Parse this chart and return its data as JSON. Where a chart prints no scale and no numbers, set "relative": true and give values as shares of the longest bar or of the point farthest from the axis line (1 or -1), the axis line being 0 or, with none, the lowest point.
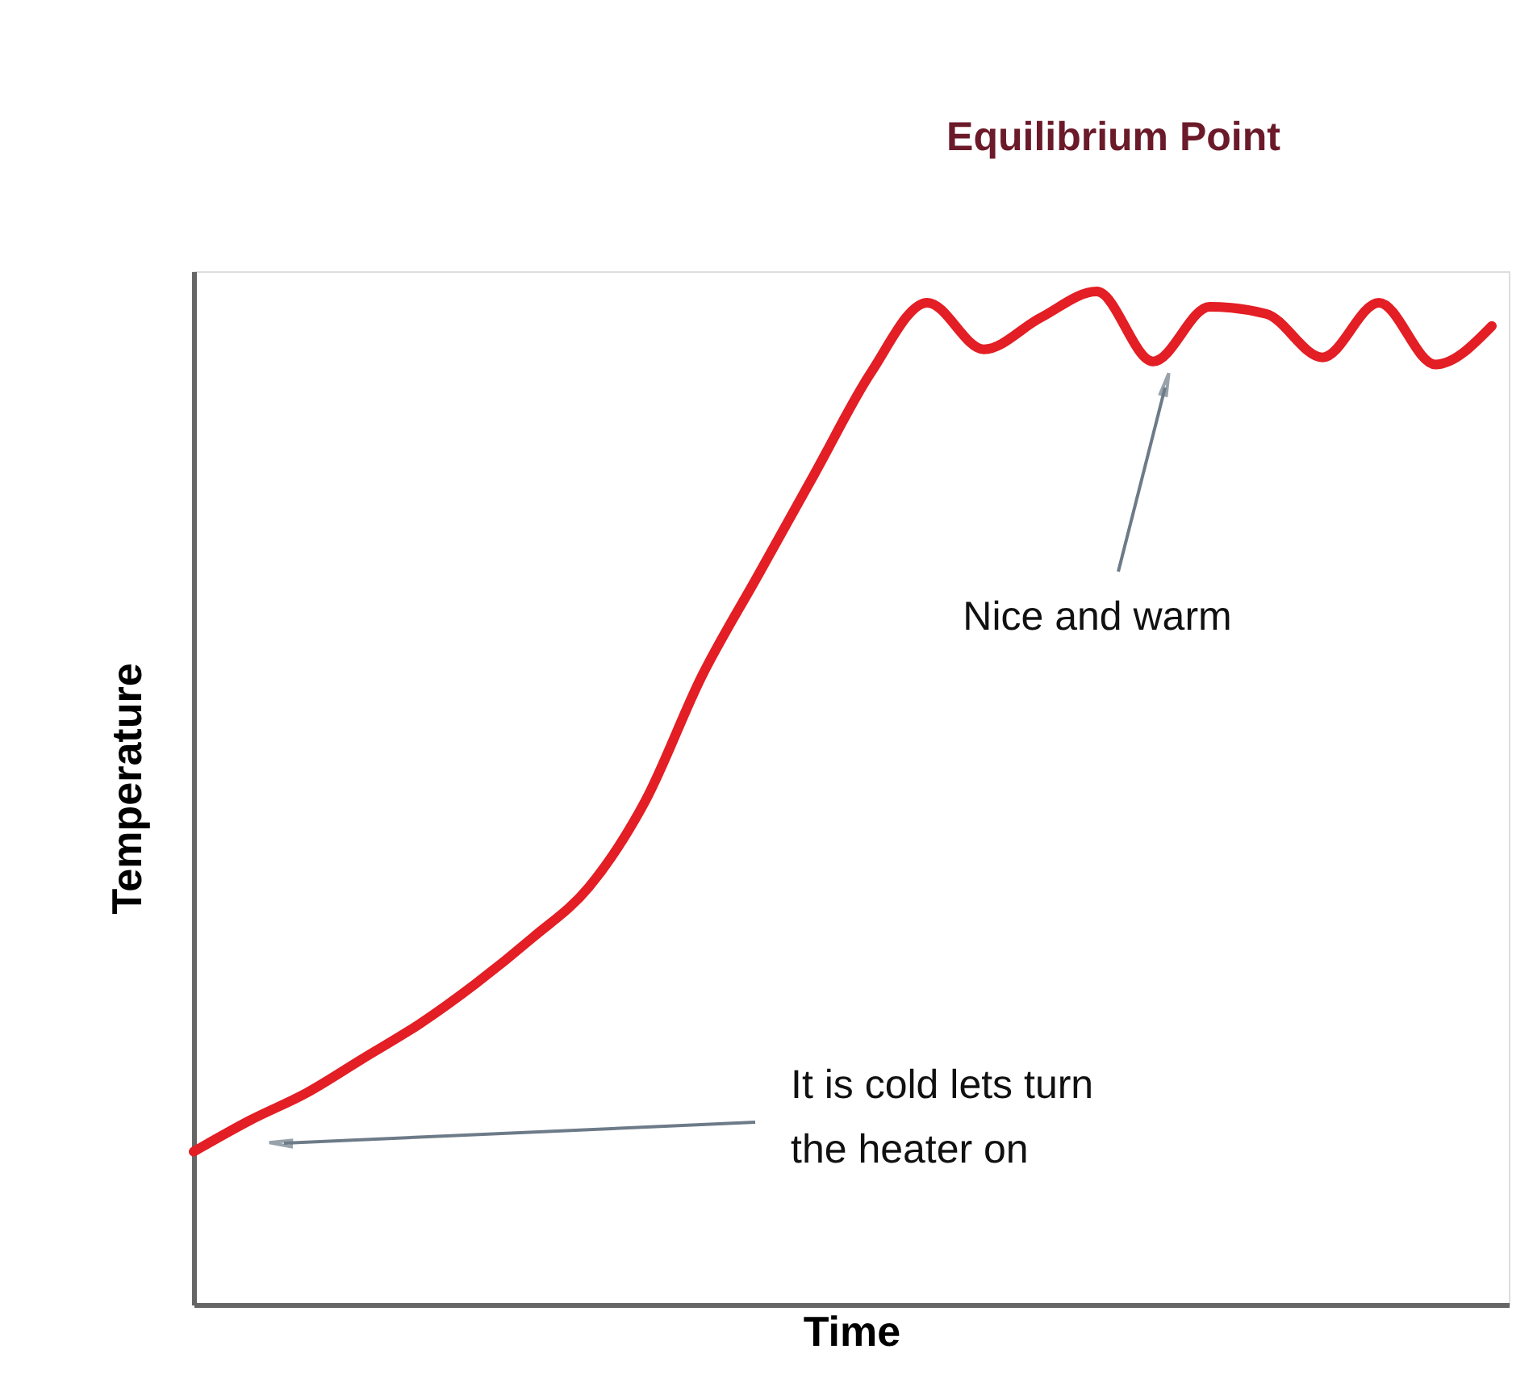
{
  "chart_data": {
    "type": "line",
    "relative": true,
    "xlabel": "Time",
    "ylabel": "Temperature",
    "categories": [
      null,
      null,
      null,
      null,
      null,
      null,
      null,
      null,
      null,
      null,
      null,
      null,
      null,
      null,
      null,
      null,
      null,
      null,
      null,
      null,
      null,
      null,
      null,
      null
    ],
    "series": [
      {
        "color": "#e31e24",
        "values": [
          0.151,
          0.182,
          0.209,
          0.243,
          0.277,
          0.317,
          0.362,
          0.412,
          0.497,
          0.62,
          0.72,
          0.82,
          0.92,
          0.989,
          0.943,
          0.974,
          1.0,
          0.931,
          0.985,
          0.978,
          0.935,
          0.989,
          0.928,
          0.966
        ]
      }
    ],
    "annotations": [
      "Equilibrium Point",
      "Nice and warm",
      "It is cold lets turn\nthe heater on"
    ]
  }
}
